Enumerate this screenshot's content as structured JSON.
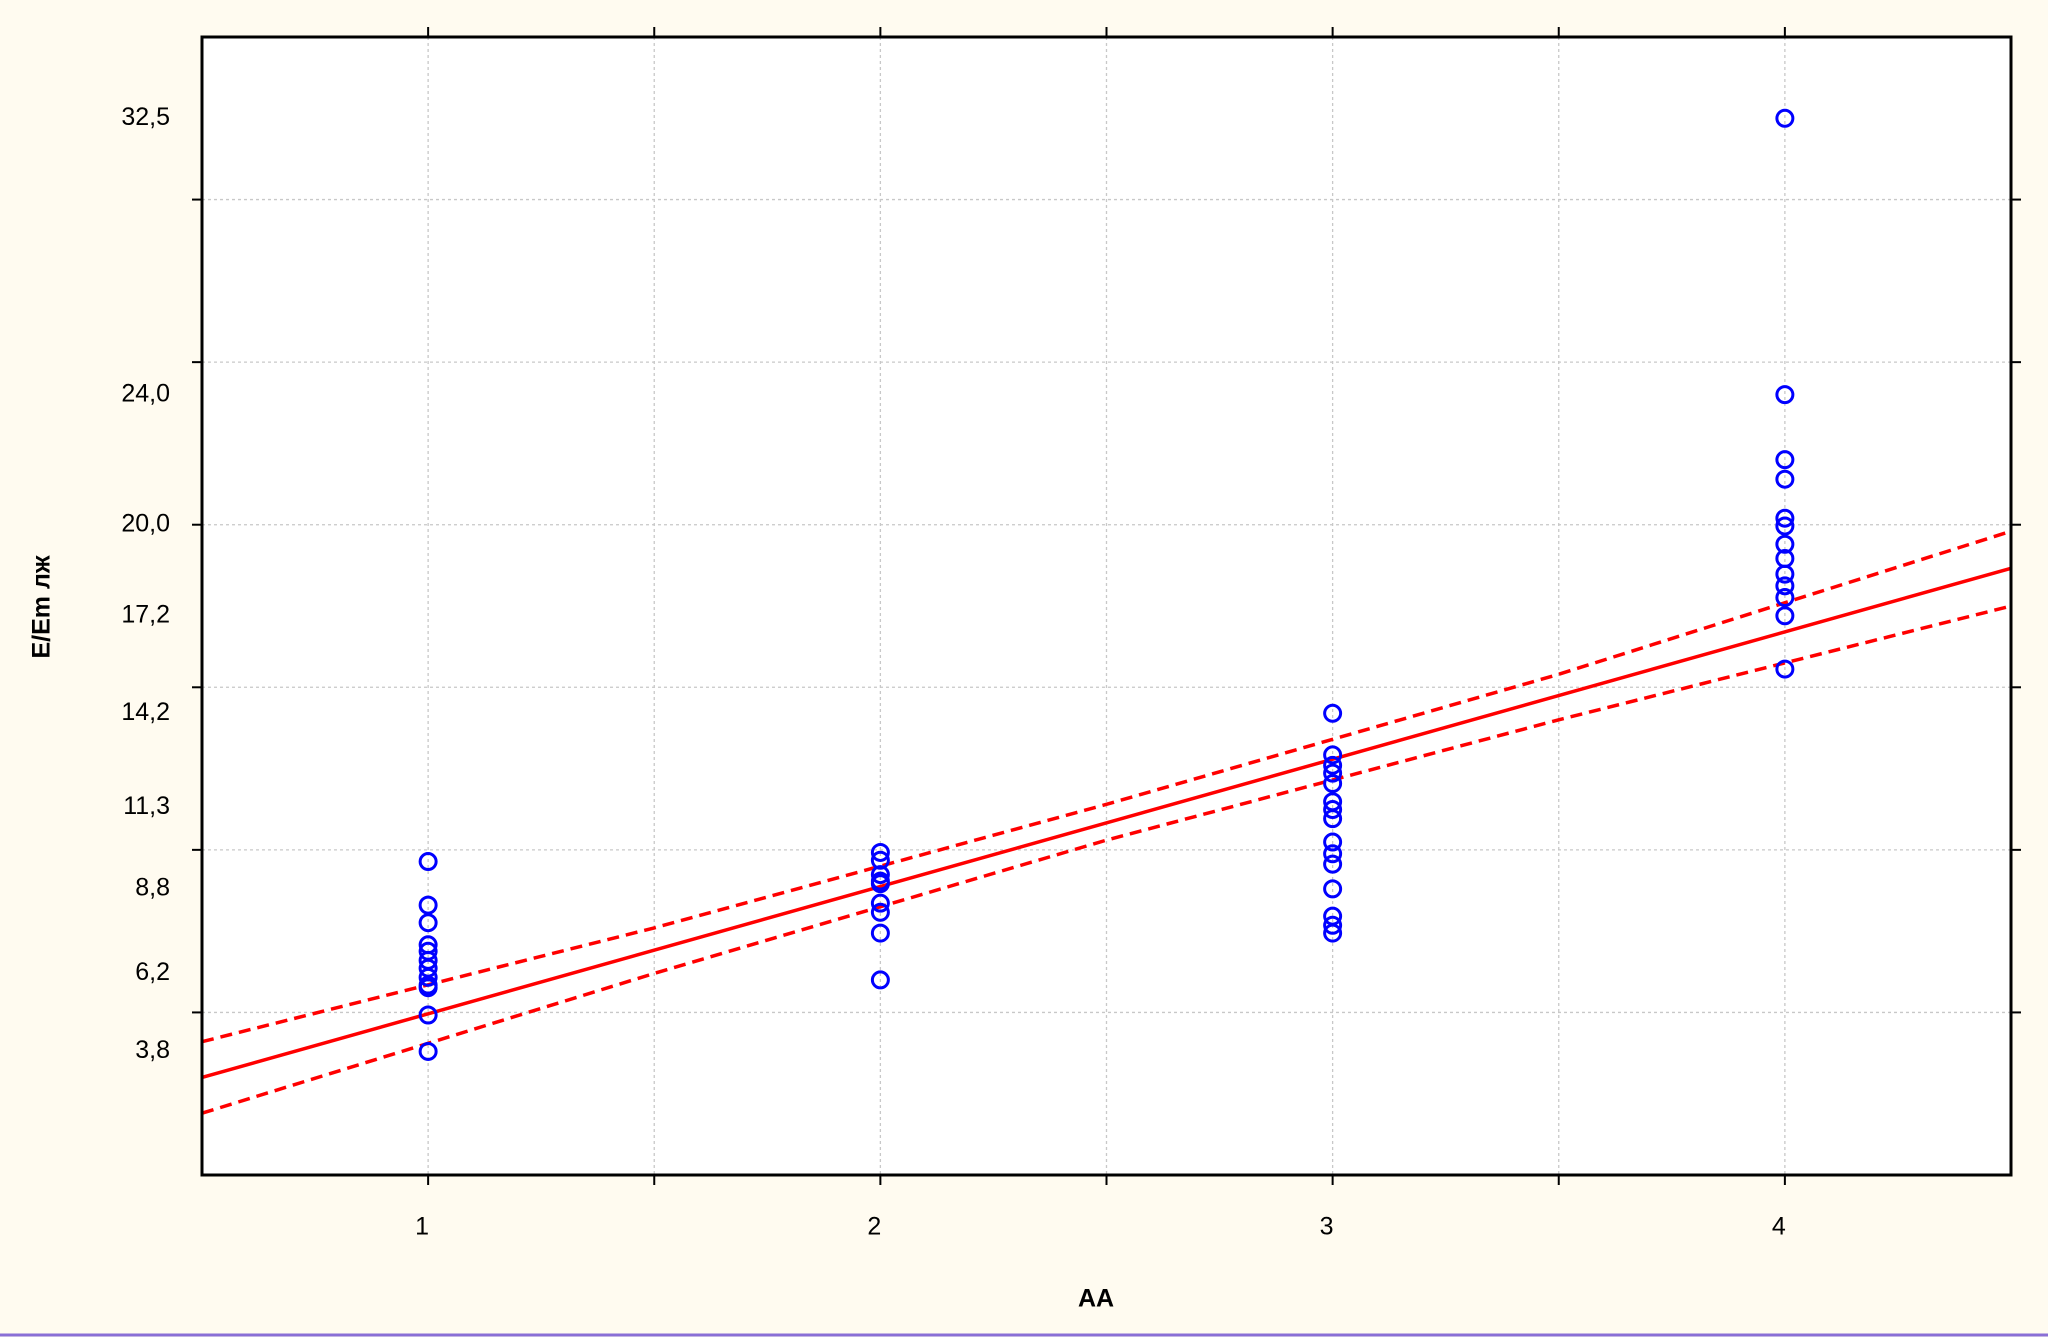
{
  "chart_data": {
    "type": "scatter",
    "x_label": "АА",
    "y_label": "E/Em лж",
    "xlim": [
      0.5,
      4.5
    ],
    "ylim": [
      0,
      35
    ],
    "xticks": [
      1,
      2,
      3,
      4
    ],
    "xgrid": [
      1,
      1.5,
      2,
      2.5,
      3,
      3.5,
      4
    ],
    "yticks": [
      {
        "value": 3.8,
        "label": "3,8"
      },
      {
        "value": 6.2,
        "label": "6,2"
      },
      {
        "value": 8.8,
        "label": "8,8"
      },
      {
        "value": 11.3,
        "label": "11,3"
      },
      {
        "value": 14.2,
        "label": "14,2"
      },
      {
        "value": 17.2,
        "label": "17,2"
      },
      {
        "value": 20.0,
        "label": "20,0"
      },
      {
        "value": 24.0,
        "label": "24,0"
      },
      {
        "value": 32.5,
        "label": "32,5"
      }
    ],
    "ygrid": [
      5,
      10,
      15,
      20,
      25,
      30
    ],
    "grid": true,
    "series": [
      {
        "type": "scatter",
        "color": "#0000ff",
        "x": [
          1,
          1,
          1,
          1,
          1,
          1,
          1,
          1,
          1,
          1,
          1,
          1,
          2,
          2,
          2,
          2,
          2,
          2,
          2,
          2,
          2,
          3,
          3,
          3,
          3,
          3,
          3,
          3,
          3,
          3,
          3,
          3,
          3,
          3,
          3,
          3,
          4,
          4,
          4,
          4,
          4,
          4,
          4,
          4,
          4,
          4,
          4,
          4,
          4
        ],
        "values": [
          9.64,
          8.3,
          7.76,
          7.08,
          6.88,
          6.6,
          6.36,
          6.08,
          5.84,
          5.76,
          4.92,
          3.8,
          9.92,
          9.68,
          9.24,
          9.04,
          8.96,
          8.36,
          8.08,
          7.44,
          6.0,
          14.2,
          12.92,
          12.6,
          12.36,
          12.04,
          11.48,
          11.24,
          10.96,
          10.24,
          9.88,
          9.56,
          8.8,
          7.96,
          7.68,
          7.44,
          32.5,
          24.0,
          22.0,
          21.4,
          20.2,
          19.96,
          19.4,
          18.96,
          18.48,
          18.12,
          17.76,
          17.2,
          15.56
        ]
      },
      {
        "type": "line",
        "color": "#ff0000",
        "style": "solid",
        "x": [
          0.5,
          4.5
        ],
        "values": [
          3.0,
          18.66
        ]
      },
      {
        "type": "line",
        "color": "#ff0000",
        "style": "dashed",
        "x": [
          0.5,
          1.5,
          2.5,
          3.5,
          4.5
        ],
        "values": [
          4.1,
          7.6,
          11.4,
          15.4,
          19.8
        ]
      },
      {
        "type": "line",
        "color": "#ff0000",
        "style": "dashed",
        "x": [
          0.5,
          1.5,
          2.5,
          3.5,
          4.5
        ],
        "values": [
          1.9,
          6.2,
          10.3,
          14.0,
          17.5
        ]
      }
    ]
  }
}
